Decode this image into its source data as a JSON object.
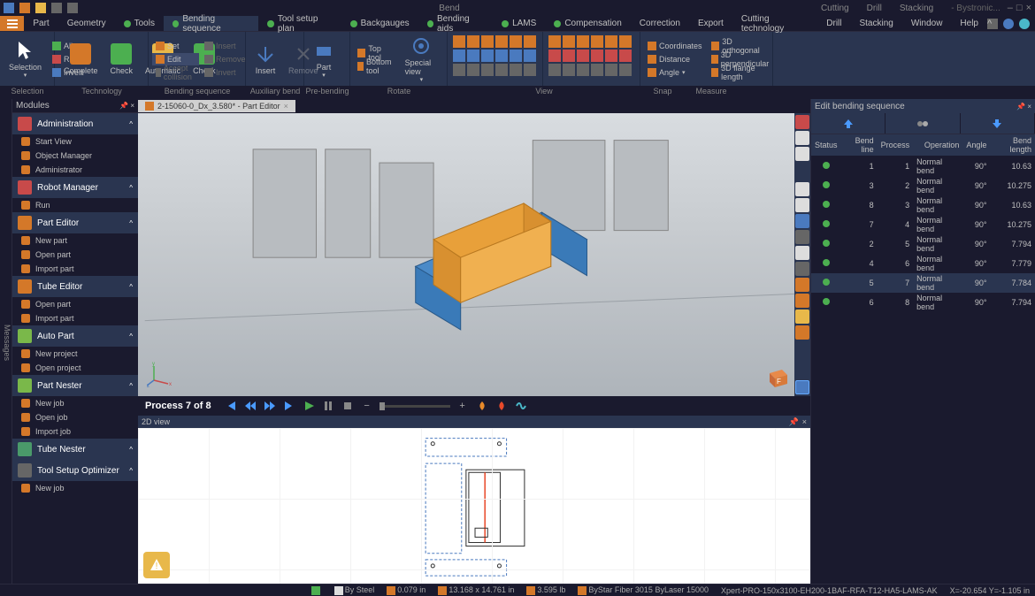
{
  "app": {
    "title": "Bend",
    "brand": "- Bystronic..."
  },
  "topmodes": [
    "Cutting",
    "Drill",
    "Stacking"
  ],
  "tabs": [
    {
      "label": "Part",
      "dot": false
    },
    {
      "label": "Geometry",
      "dot": false
    },
    {
      "label": "Tools",
      "dot": true
    },
    {
      "label": "Bending sequence",
      "dot": true,
      "active": true
    },
    {
      "label": "Tool setup plan",
      "dot": true
    },
    {
      "label": "Backgauges",
      "dot": true
    },
    {
      "label": "Bending aids",
      "dot": true
    },
    {
      "label": "LAMS",
      "dot": true
    },
    {
      "label": "Compensation",
      "dot": true
    },
    {
      "label": "Correction",
      "dot": false
    },
    {
      "label": "Export",
      "dot": false
    },
    {
      "label": "Cutting technology",
      "dot": false
    },
    {
      "label": "Drill",
      "dot": false
    },
    {
      "label": "Stacking",
      "dot": false
    },
    {
      "label": "Window",
      "dot": false
    },
    {
      "label": "Help",
      "dot": false
    }
  ],
  "ribbonGroups": [
    "Selection",
    "Technology",
    "Bending sequence",
    "Auxiliary bend",
    "Pre-bending",
    "Rotate",
    "View",
    "Snap",
    "Measure"
  ],
  "ribbon": {
    "selection": {
      "big": "Selection",
      "small": [
        "All",
        "Raise",
        "Invert"
      ]
    },
    "tech": {
      "btns": [
        "Complete",
        "Check",
        "Automatic",
        "Check"
      ]
    },
    "seq": {
      "small1": [
        "Set",
        "Edit",
        "Accept collision"
      ],
      "small2": [
        "Insert",
        "Remove",
        "Invert"
      ],
      "btns": [
        "Insert",
        "Remove"
      ]
    },
    "aux": {
      "big": "Part",
      "small": [
        "Top tool",
        "Bottom tool"
      ]
    },
    "pre": {
      "big": "Special view"
    },
    "measure": {
      "small1": [
        "Coordinates",
        "Distance",
        "Angle"
      ],
      "small2": [
        "3D orthogonal",
        "3D perpendicular",
        "3D flange length"
      ]
    }
  },
  "ribbonWidths": [
    62,
    106,
    110,
    66,
    52,
    110,
    218,
    50,
    60
  ],
  "modules": {
    "title": "Modules",
    "groups": [
      {
        "name": "Administration",
        "color": "#c84a4a",
        "items": [
          "Start View",
          "Object Manager",
          "Administrator"
        ]
      },
      {
        "name": "Robot Manager",
        "color": "#c84a4a",
        "items": [
          "Run"
        ]
      },
      {
        "name": "Part Editor",
        "color": "#d47829",
        "items": [
          "New part",
          "Open part",
          "Import part"
        ]
      },
      {
        "name": "Tube Editor",
        "color": "#d47829",
        "items": [
          "Open part",
          "Import part"
        ]
      },
      {
        "name": "Auto Part",
        "color": "#7ab84a",
        "items": [
          "New project",
          "Open project"
        ]
      },
      {
        "name": "Part Nester",
        "color": "#7ab84a",
        "items": [
          "New job",
          "Open job",
          "Import job"
        ]
      },
      {
        "name": "Tube Nester",
        "color": "#4a9a6a",
        "items": []
      },
      {
        "name": "Tool Setup Optimizer",
        "color": "#666",
        "items": [
          "New job"
        ]
      }
    ]
  },
  "doc": {
    "title": "2-15060-0_Dx_3.580* - Part Editor"
  },
  "playback": {
    "label": "Process 7 of 8"
  },
  "view2d": {
    "title": "2D view"
  },
  "bendpanel": {
    "title": "Edit bending sequence",
    "cols": [
      "Status",
      "Bend line",
      "Process",
      "Operation",
      "Angle",
      "Bend length"
    ],
    "rows": [
      {
        "line": 1,
        "proc": 1,
        "op": "Normal bend",
        "ang": "90°",
        "len": "10.63"
      },
      {
        "line": 3,
        "proc": 2,
        "op": "Normal bend",
        "ang": "90°",
        "len": "10.275"
      },
      {
        "line": 8,
        "proc": 3,
        "op": "Normal bend",
        "ang": "90°",
        "len": "10.63"
      },
      {
        "line": 7,
        "proc": 4,
        "op": "Normal bend",
        "ang": "90°",
        "len": "10.275"
      },
      {
        "line": 2,
        "proc": 5,
        "op": "Normal bend",
        "ang": "90°",
        "len": "7.794"
      },
      {
        "line": 4,
        "proc": 6,
        "op": "Normal bend",
        "ang": "90°",
        "len": "7.779"
      },
      {
        "line": 5,
        "proc": 7,
        "op": "Normal bend",
        "ang": "90°",
        "len": "7.784",
        "sel": true
      },
      {
        "line": 6,
        "proc": 8,
        "op": "Normal bend",
        "ang": "90°",
        "len": "7.794"
      }
    ]
  },
  "status": {
    "material": "By Steel",
    "thick": "0.079 in",
    "size": "13.168 x 14.761 in",
    "weight": "3.595 lb",
    "machine": "ByStar Fiber 3015 ByLaser 15000",
    "profile": "Xpert-PRO-150x3100-EH200-1BAF-RFA-T12-HA5-LAMS-AK",
    "coords": "X=-20.654  Y=-1.105 in"
  },
  "colors": {
    "accent": "#d47829",
    "panel": "#2a3550",
    "bg": "#1a1a2e",
    "part_orange": "#e8a03a",
    "part_blue": "#4a8ac8"
  }
}
